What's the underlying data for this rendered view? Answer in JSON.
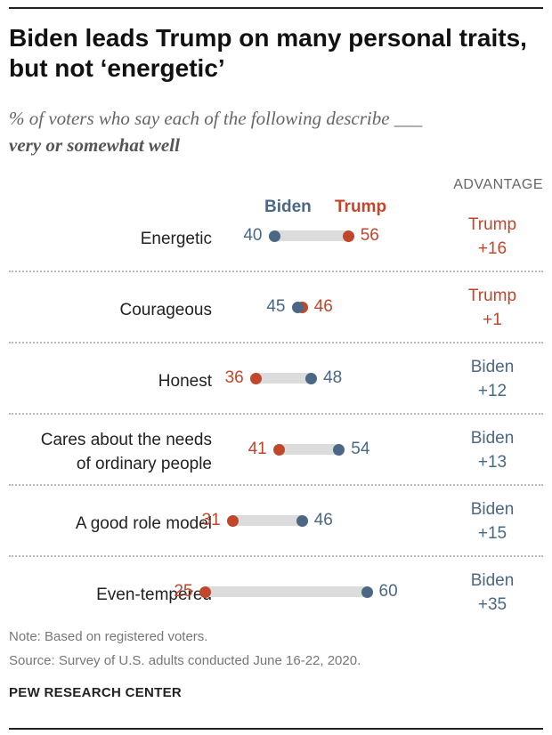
{
  "chart_data": {
    "type": "dot",
    "title": "Biden leads Trump on many personal traits, but not ‘energetic’",
    "subtitle": "% of voters who say each of the following describe ___",
    "subtitle_emphasis": "very or somewhat well",
    "legend": {
      "biden": "Biden",
      "trump": "Trump"
    },
    "advantage_header": "ADVANTAGE",
    "xlim": [
      0,
      100
    ],
    "rows": [
      {
        "label": "Energetic",
        "biden": 40,
        "trump": 56,
        "adv_name": "Trump",
        "adv_value": "+16"
      },
      {
        "label": "Courageous",
        "biden": 45,
        "trump": 46,
        "adv_name": "Trump",
        "adv_value": "+1"
      },
      {
        "label": "Honest",
        "biden": 48,
        "trump": 36,
        "adv_name": "Biden",
        "adv_value": "+12"
      },
      {
        "label": "Cares about the needs of ordinary people",
        "label_line1": "Cares about the needs",
        "label_line2": "of ordinary people",
        "biden": 54,
        "trump": 41,
        "adv_name": "Biden",
        "adv_value": "+13"
      },
      {
        "label": "A good role model",
        "biden": 46,
        "trump": 31,
        "adv_name": "Biden",
        "adv_value": "+15"
      },
      {
        "label": "Even-tempered",
        "biden": 60,
        "trump": 25,
        "adv_name": "Biden",
        "adv_value": "+35"
      }
    ],
    "note": "Note: Based on registered voters.",
    "source": "Source: Survey of U.S. adults conducted June 16-22, 2020.",
    "org": "PEW RESEARCH CENTER"
  },
  "colors": {
    "biden": "#4a6784",
    "trump": "#c0462c",
    "bar": "#dcdcdc"
  }
}
